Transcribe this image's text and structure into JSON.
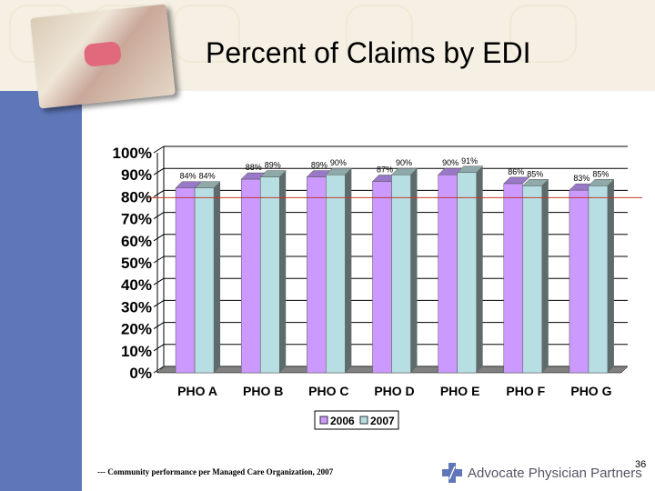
{
  "slide": {
    "title": "Percent of Claims by EDI",
    "footnote": "--- Community performance per Managed Care Organization, 2007",
    "logo_text": "Advocate Physician Partners",
    "page_number": "36",
    "colors": {
      "left_bar": "#5f77b8",
      "top_band": "#f5f0e3",
      "series_2006": "#cc99ff",
      "series_2007": "#b7dfe3",
      "target_line": "#c0392b"
    }
  },
  "chart_data": {
    "type": "bar",
    "title": "Percent of Claims by EDI",
    "xlabel": "",
    "ylabel": "",
    "ylim": [
      0,
      100
    ],
    "yticks": [
      "0%",
      "10%",
      "20%",
      "30%",
      "40%",
      "50%",
      "60%",
      "70%",
      "80%",
      "90%",
      "100%"
    ],
    "categories": [
      "PHO A",
      "PHO B",
      "PHO C",
      "PHO D",
      "PHO E",
      "PHO F",
      "PHO G"
    ],
    "series": [
      {
        "name": "2006",
        "values": [
          84,
          88,
          89,
          87,
          90,
          86,
          83
        ],
        "labels": [
          "84%",
          "88%",
          "89%",
          "87%",
          "90%",
          "86%",
          "83%"
        ]
      },
      {
        "name": "2007",
        "values": [
          84,
          89,
          90,
          90,
          91,
          85,
          85
        ],
        "labels": [
          "84%",
          "89%",
          "90%",
          "90%",
          "91%",
          "85%",
          "85%"
        ]
      }
    ],
    "reference_line": {
      "value": 80,
      "color": "#c0392b"
    },
    "grid": true,
    "legend_position": "bottom",
    "style": "3d-clustered-column"
  }
}
